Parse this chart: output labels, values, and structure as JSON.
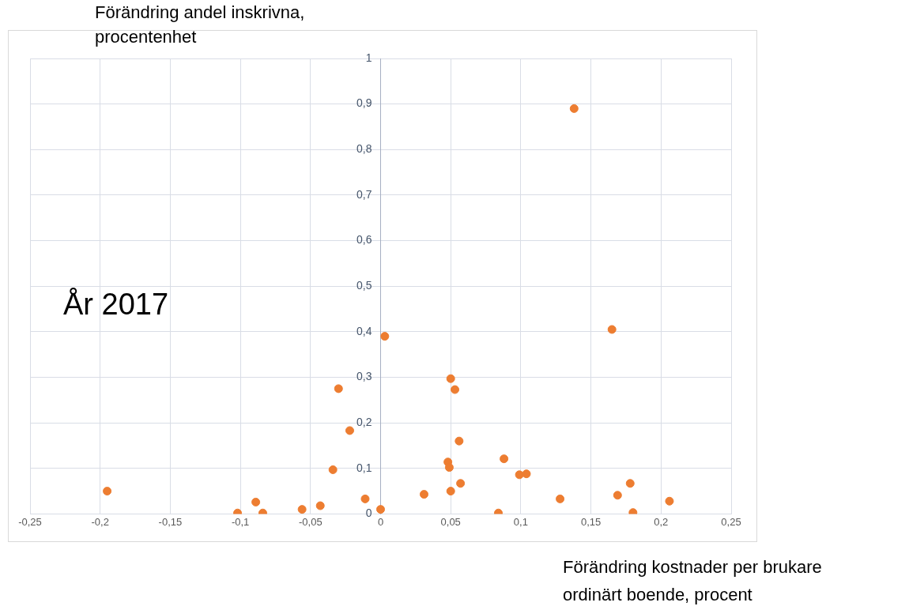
{
  "chart_data": {
    "type": "scatter",
    "ylabel": "Förändring andel inskrivna, procentenhet",
    "xlabel": "Förändring kostnader per brukare ordinärt boende, procent",
    "annotations": [
      "År 2017"
    ],
    "x": [
      -0.195,
      -0.102,
      -0.089,
      -0.084,
      -0.056,
      -0.043,
      -0.034,
      -0.03,
      -0.022,
      -0.011,
      0,
      0.003,
      0.031,
      0.048,
      0.049,
      0.05,
      0.05,
      0.053,
      0.056,
      0.057,
      0.084,
      0.088,
      0.099,
      0.104,
      0.128,
      0.138,
      0.165,
      0.169,
      0.178,
      0.18,
      0.206
    ],
    "series": [
      {
        "color": "#ed7d31",
        "values": [
          0.05,
          0.002,
          0.026,
          0.002,
          0.01,
          0.018,
          0.097,
          0.275,
          0.183,
          0.033,
          0.01,
          0.39,
          0.043,
          0.114,
          0.102,
          0.297,
          0.05,
          0.273,
          0.16,
          0.067,
          0.002,
          0.121,
          0.086,
          0.088,
          0.033,
          0.89,
          0.405,
          0.041,
          0.067,
          0.003,
          0.028
        ]
      }
    ],
    "xlim": [
      -0.25,
      0.25
    ],
    "xticks": [
      {
        "value": -0.25,
        "label": "-0,25"
      },
      {
        "value": -0.2,
        "label": "-0,2"
      },
      {
        "value": -0.15,
        "label": "-0,15"
      },
      {
        "value": -0.1,
        "label": "-0,1"
      },
      {
        "value": -0.05,
        "label": "-0,05"
      },
      0,
      {
        "value": 0.05,
        "label": "0,05"
      },
      {
        "value": 0.1,
        "label": "0,1"
      },
      {
        "value": 0.15,
        "label": "0,15"
      },
      {
        "value": 0.2,
        "label": "0,2"
      },
      {
        "value": 0.25,
        "label": "0,25"
      }
    ],
    "ylim": [
      0,
      1
    ],
    "yticks": [
      0,
      {
        "value": 0.1,
        "label": "0,1"
      },
      {
        "value": 0.2,
        "label": "0,2"
      },
      {
        "value": 0.3,
        "label": "0,3"
      },
      {
        "value": 0.4,
        "label": "0,4"
      },
      {
        "value": 0.5,
        "label": "0,5"
      },
      {
        "value": 0.6,
        "label": "0,6"
      },
      {
        "value": 0.7,
        "label": "0,7"
      },
      {
        "value": 0.8,
        "label": "0,8"
      },
      {
        "value": 0.9,
        "label": "0,9"
      },
      1
    ],
    "grid": true,
    "legend": false,
    "marker": "circle"
  }
}
